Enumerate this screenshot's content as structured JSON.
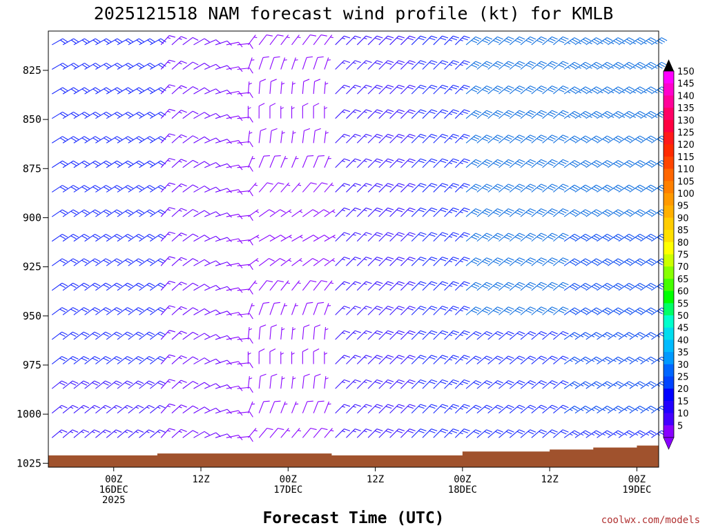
{
  "chart_data": {
    "type": "wind-barb-profile",
    "title": "2025121518 NAM forecast wind profile (kt) for KMLB",
    "xlabel": "Forecast Time (UTC)",
    "ylabel": "",
    "y_ticks": [
      "825",
      "850",
      "875",
      "900",
      "925",
      "950",
      "975",
      "1000",
      "1025"
    ],
    "y_tick_values": [
      825,
      850,
      875,
      900,
      925,
      950,
      975,
      1000,
      1025
    ],
    "y_range_hpa": [
      805,
      1027
    ],
    "x_range_hours": [
      -9,
      75
    ],
    "x_ticks": [
      {
        "hour": 0,
        "lines": [
          "00Z",
          "16DEC",
          "2025"
        ]
      },
      {
        "hour": 12,
        "lines": [
          "12Z"
        ]
      },
      {
        "hour": 24,
        "lines": [
          "00Z",
          "17DEC"
        ]
      },
      {
        "hour": 36,
        "lines": [
          "12Z"
        ]
      },
      {
        "hour": 48,
        "lines": [
          "00Z",
          "18DEC"
        ]
      },
      {
        "hour": 60,
        "lines": [
          "12Z"
        ]
      },
      {
        "hour": 72,
        "lines": [
          "00Z",
          "19DEC"
        ]
      }
    ],
    "colorbar": {
      "labels": [
        "150",
        "145",
        "140",
        "135",
        "130",
        "125",
        "120",
        "115",
        "110",
        "105",
        "100",
        "95",
        "90",
        "85",
        "80",
        "75",
        "70",
        "65",
        "60",
        "55",
        "50",
        "45",
        "40",
        "35",
        "30",
        "25",
        "20",
        "15",
        "10",
        "5"
      ],
      "colors": [
        "#ff00ff",
        "#ff00cc",
        "#ff0099",
        "#ff0066",
        "#ff0040",
        "#ff1a1a",
        "#ff2a00",
        "#ff4500",
        "#ff6600",
        "#ff8000",
        "#ff9900",
        "#ffb000",
        "#ffcc00",
        "#ffe000",
        "#ffff00",
        "#ccff00",
        "#88ff00",
        "#44ff00",
        "#00ff00",
        "#00ff66",
        "#00ffcc",
        "#00ddee",
        "#00bbff",
        "#0099ff",
        "#0066ff",
        "#0044ff",
        "#0000ff",
        "#2200ff",
        "#4400ff",
        "#8800ff"
      ],
      "top_arrow_color": "#000000",
      "bottom_arrow_color": "#8800ff"
    },
    "surface_pressure": [
      {
        "h": -9,
        "p": 1021
      },
      {
        "h": 0,
        "p": 1021
      },
      {
        "h": 6,
        "p": 1020
      },
      {
        "h": 12,
        "p": 1020
      },
      {
        "h": 18,
        "p": 1020
      },
      {
        "h": 24,
        "p": 1020
      },
      {
        "h": 30,
        "p": 1021
      },
      {
        "h": 36,
        "p": 1021
      },
      {
        "h": 42,
        "p": 1021
      },
      {
        "h": 48,
        "p": 1019
      },
      {
        "h": 54,
        "p": 1019
      },
      {
        "h": 60,
        "p": 1018
      },
      {
        "h": 66,
        "p": 1017
      },
      {
        "h": 72,
        "p": 1016
      },
      {
        "h": 75,
        "p": 1016
      }
    ],
    "wind_speed_kt_summary": {
      "early_low_levels": "20-25 kt NE",
      "day2_midday": "5-10 kt",
      "day3": "15-30 kt NE",
      "late_period": "25-35 kt"
    }
  },
  "credit": "coolwx.com/models"
}
